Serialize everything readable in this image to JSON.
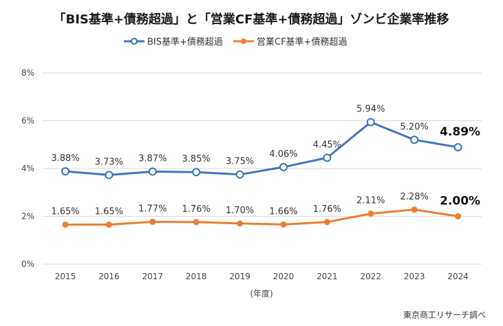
{
  "chart_data": {
    "type": "line",
    "title": "「BIS基準+債務超過」と「営業CF基準+債務超過」ゾンビ企業率推移",
    "xlabel": "(年度)",
    "ylabel": "",
    "ylim": [
      0,
      8
    ],
    "yticks": [
      0,
      2,
      4,
      6,
      8
    ],
    "ytick_labels": [
      "0%",
      "2%",
      "4%",
      "6%",
      "8%"
    ],
    "grid": true,
    "legend_position": "top-center",
    "categories": [
      "2015",
      "2016",
      "2017",
      "2018",
      "2019",
      "2020",
      "2021",
      "2022",
      "2023",
      "2024"
    ],
    "series": [
      {
        "name": "BIS基準+債務超過",
        "color": "#4472c4",
        "marker": "hollow-circle",
        "marker_fill": "#ffffff",
        "marker_stroke": "#2e75b6",
        "values": [
          3.88,
          3.73,
          3.87,
          3.85,
          3.75,
          4.06,
          4.45,
          5.94,
          5.2,
          4.89
        ],
        "labels": [
          "3.88%",
          "3.73%",
          "3.87%",
          "3.85%",
          "3.75%",
          "4.06%",
          "4.45%",
          "5.94%",
          "5.20%",
          "4.89%"
        ],
        "highlight_last": true
      },
      {
        "name": "営業CF基準+債務超過",
        "color": "#ed7d31",
        "marker": "filled-circle",
        "marker_fill": "#ed7d31",
        "marker_stroke": "#ed7d31",
        "values": [
          1.65,
          1.65,
          1.77,
          1.76,
          1.7,
          1.66,
          1.76,
          2.11,
          2.28,
          2.0
        ],
        "labels": [
          "1.65%",
          "1.65%",
          "1.77%",
          "1.76%",
          "1.70%",
          "1.66%",
          "1.76%",
          "2.11%",
          "2.28%",
          "2.00%"
        ],
        "highlight_last": true
      }
    ],
    "source": "東京商工リサーチ調べ"
  }
}
